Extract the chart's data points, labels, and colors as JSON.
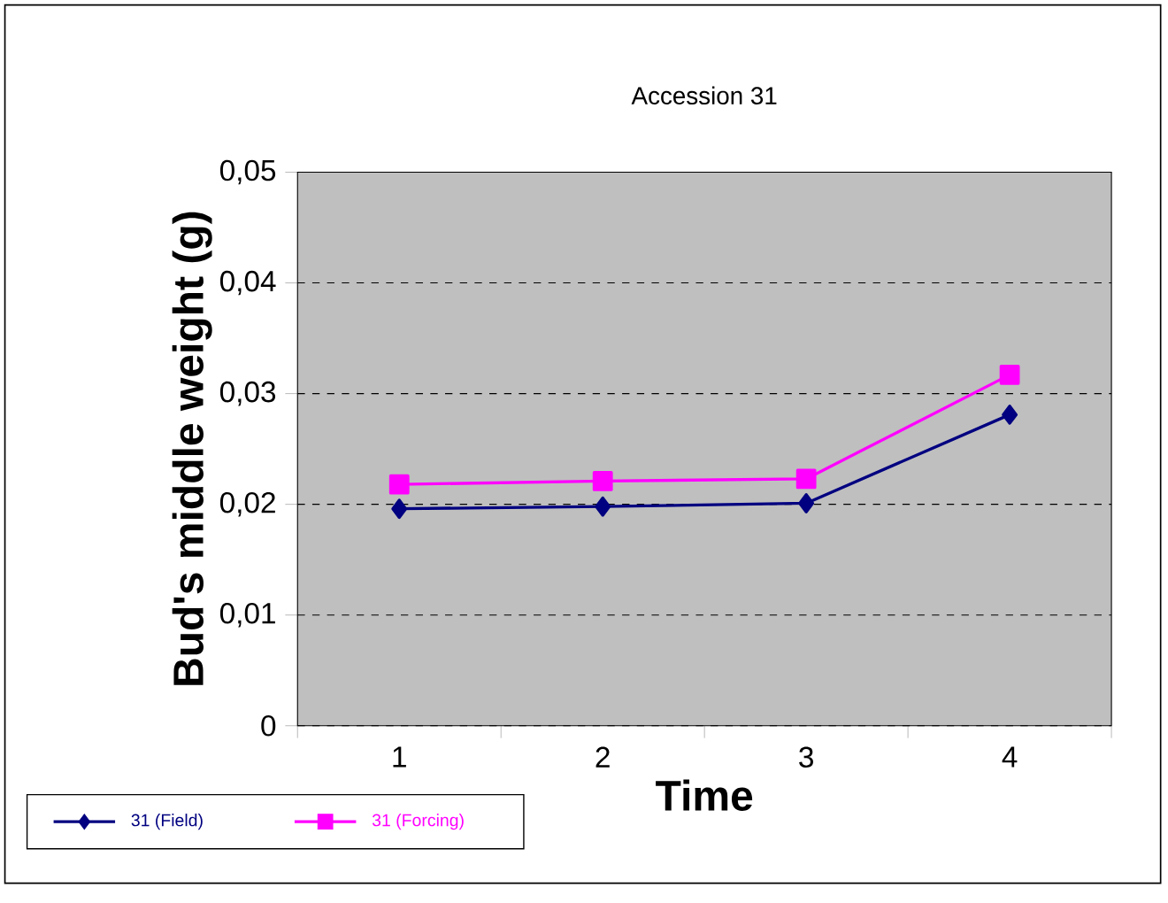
{
  "chart_data": {
    "type": "line",
    "title": "Accession 31",
    "xlabel": "Time",
    "ylabel": "Bud's middle weight (g)",
    "categories": [
      "1",
      "2",
      "3",
      "4"
    ],
    "series": [
      {
        "name": "31 (Field)",
        "color": "#000080",
        "marker": "diamond",
        "values": [
          0.0196,
          0.0198,
          0.0201,
          0.0281
        ]
      },
      {
        "name": "31 (Forcing)",
        "color": "#ff00ff",
        "marker": "square",
        "values": [
          0.0218,
          0.0221,
          0.0223,
          0.0317
        ]
      }
    ],
    "ylim": [
      0,
      0.05
    ],
    "yticks": [
      0,
      {
        "value": 0.01,
        "label": "0,01"
      },
      {
        "value": 0.02,
        "label": "0,02"
      },
      {
        "value": 0.03,
        "label": "0,03"
      },
      {
        "value": 0.04,
        "label": "0,04"
      },
      {
        "value": 0.05,
        "label": "0,05"
      }
    ],
    "grid": "y",
    "legend": "bottom left"
  }
}
